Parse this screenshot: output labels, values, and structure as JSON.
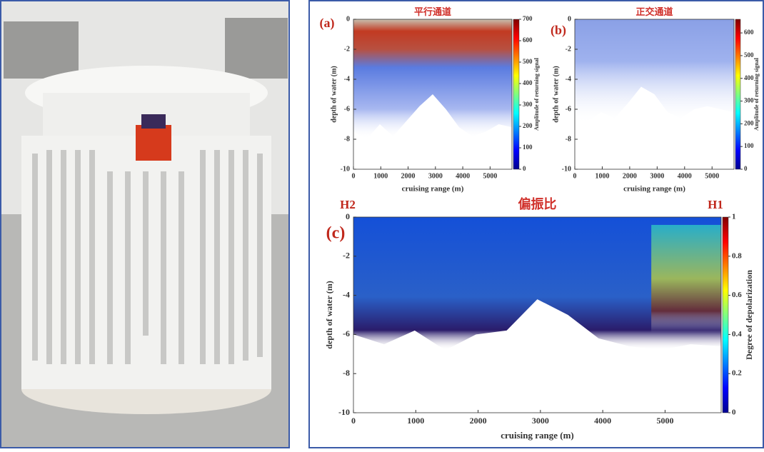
{
  "panels": [
    {
      "label": "(a)",
      "title": "平行通道",
      "ylabel": "depth of water (m)",
      "xlabel": "cruising range (m)",
      "colorbar_label": "Amplitude of returning signal",
      "xlim": [
        0,
        5800
      ],
      "xticks": [
        0,
        1000,
        2000,
        3000,
        4000,
        5000
      ],
      "ylim": [
        -10,
        0
      ],
      "yticks": [
        -10,
        -8,
        -6,
        -4,
        -2,
        0
      ],
      "clim": [
        0,
        700
      ],
      "cticks": [
        0,
        100,
        200,
        300,
        400,
        500,
        600,
        700
      ]
    },
    {
      "label": "(b)",
      "title": "正交通道",
      "ylabel": "depth of water (m)",
      "xlabel": "cruising range (m)",
      "colorbar_label": "Amplitude of returning signal",
      "xlim": [
        0,
        5800
      ],
      "xticks": [
        0,
        1000,
        2000,
        3000,
        4000,
        5000
      ],
      "ylim": [
        -10,
        0
      ],
      "yticks": [
        -10,
        -8,
        -6,
        -4,
        -2,
        0
      ],
      "clim": [
        0,
        660
      ],
      "cticks": [
        0,
        100,
        200,
        300,
        400,
        500,
        600
      ]
    },
    {
      "label": "(c)",
      "title": "偏振比",
      "left_tag": "H2",
      "right_tag": "H1",
      "ylabel": "depth of water (m)",
      "xlabel": "cruising range (m)",
      "colorbar_label": "Degree of depolarization",
      "xlim": [
        0,
        5900
      ],
      "xticks": [
        0,
        1000,
        2000,
        3000,
        4000,
        5000
      ],
      "ylim": [
        -10,
        0
      ],
      "yticks": [
        -10,
        -8,
        -6,
        -4,
        -2,
        0
      ],
      "clim": [
        0,
        1
      ],
      "cticks": [
        0,
        0.2,
        0.4,
        0.6,
        0.8,
        1
      ]
    }
  ]
}
